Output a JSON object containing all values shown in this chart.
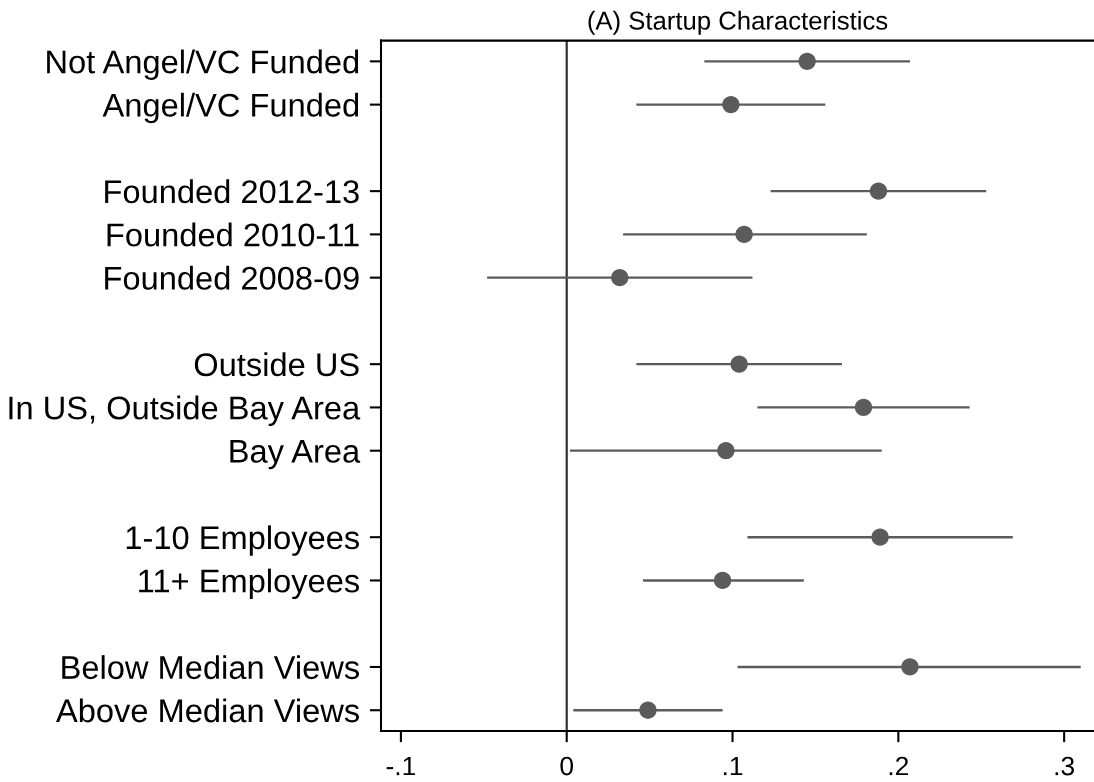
{
  "chart_data": {
    "type": "scatter",
    "orientation": "horizontal",
    "title": "(A) Startup Characteristics",
    "categories": [
      "Not Angel/VC Funded",
      "Angel/VC Funded",
      null,
      "Founded 2012-13",
      "Founded 2010-11",
      "Founded 2008-09",
      null,
      "Outside US",
      "In US, Outside Bay Area",
      "Bay Area",
      null,
      "1-10 Employees",
      "11+ Employees",
      null,
      "Below Median Views",
      "Above Median Views"
    ],
    "values": [
      0.145,
      0.099,
      null,
      0.188,
      0.107,
      0.032,
      null,
      0.104,
      0.179,
      0.096,
      null,
      0.189,
      0.094,
      null,
      0.207,
      0.049
    ],
    "errors": [
      [
        0.083,
        0.207
      ],
      [
        0.042,
        0.156
      ],
      null,
      [
        0.123,
        0.253
      ],
      [
        0.034,
        0.181
      ],
      [
        -0.048,
        0.112
      ],
      null,
      [
        0.042,
        0.166
      ],
      [
        0.115,
        0.243
      ],
      [
        0.002,
        0.19
      ],
      null,
      [
        0.109,
        0.269
      ],
      [
        0.046,
        0.143
      ],
      null,
      [
        0.103,
        0.31
      ],
      [
        0.004,
        0.094
      ]
    ],
    "color": "#5b5b5b",
    "marker": "circle",
    "xlim": [
      -0.112,
      0.318
    ],
    "xticks": [
      {
        "value": -0.1,
        "label": "-.1"
      },
      0,
      {
        "value": 0.1,
        "label": ".1"
      },
      {
        "value": 0.2,
        "label": ".2"
      },
      {
        "value": 0.3,
        "label": ".3"
      }
    ],
    "ref_lines": [
      {
        "axis": "x",
        "value": 0,
        "color": "#333333"
      }
    ]
  }
}
